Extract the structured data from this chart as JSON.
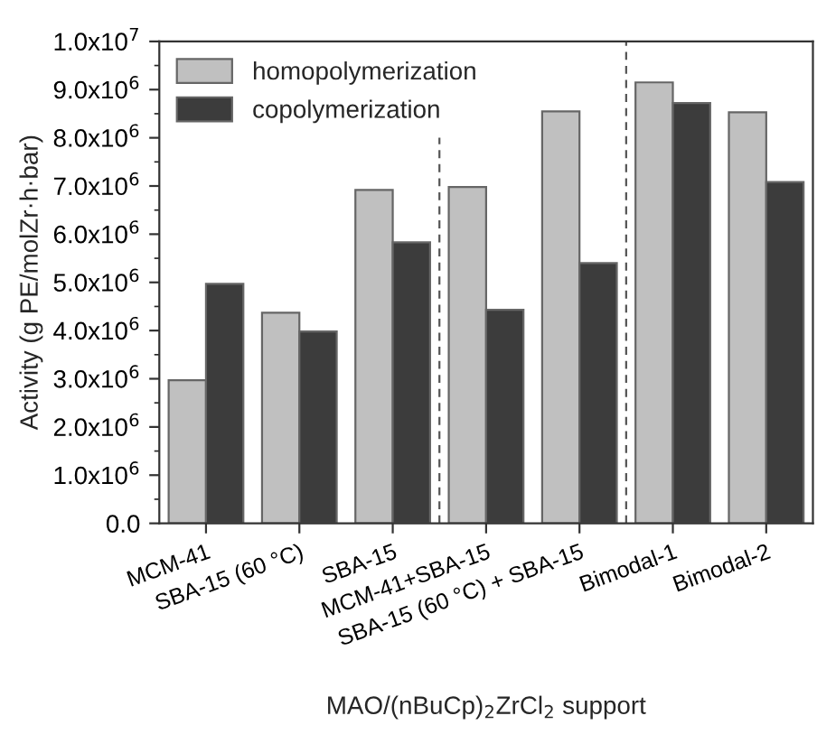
{
  "chart_data": {
    "type": "bar",
    "categories": [
      "MCM-41",
      "SBA-15 (60 °C)",
      "SBA-15",
      "MCM-41+SBA-15",
      "SBA-15 (60 °C) + SBA-15",
      "Bimodal-1",
      "Bimodal-2"
    ],
    "series": [
      {
        "name": "homopolymerization",
        "color": "#c0c0c0",
        "values": [
          2970000,
          4370000,
          6920000,
          6980000,
          8550000,
          9150000,
          8530000
        ]
      },
      {
        "name": "copolymerization",
        "color": "#3c3c3c",
        "values": [
          4970000,
          3980000,
          5830000,
          4430000,
          5400000,
          8720000,
          7080000
        ]
      }
    ],
    "xlabel": "MAO/(nBuCp)$_{2}$ZrCl$_{2}$ support",
    "ylabel": "Activity (g PE/molZr·h·bar)",
    "ylim": [
      0,
      10000000
    ],
    "yticks": [
      {
        "value": 0,
        "label": "0.0"
      },
      {
        "value": 1000000,
        "label": "1.0x10$^{6}$"
      },
      {
        "value": 2000000,
        "label": "2.0x10$^{6}$"
      },
      {
        "value": 3000000,
        "label": "3.0x10$^{6}$"
      },
      {
        "value": 4000000,
        "label": "4.0x10$^{6}$"
      },
      {
        "value": 5000000,
        "label": "5.0x10$^{6}$"
      },
      {
        "value": 6000000,
        "label": "6.0x10$^{6}$"
      },
      {
        "value": 7000000,
        "label": "7.0x10$^{6}$"
      },
      {
        "value": 8000000,
        "label": "8.0x10$^{6}$"
      },
      {
        "value": 9000000,
        "label": "9.0x10$^{6}$"
      },
      {
        "value": 10000000,
        "label": "1.0x10$^{7}$"
      }
    ],
    "legend": "top left",
    "grid": false
  }
}
